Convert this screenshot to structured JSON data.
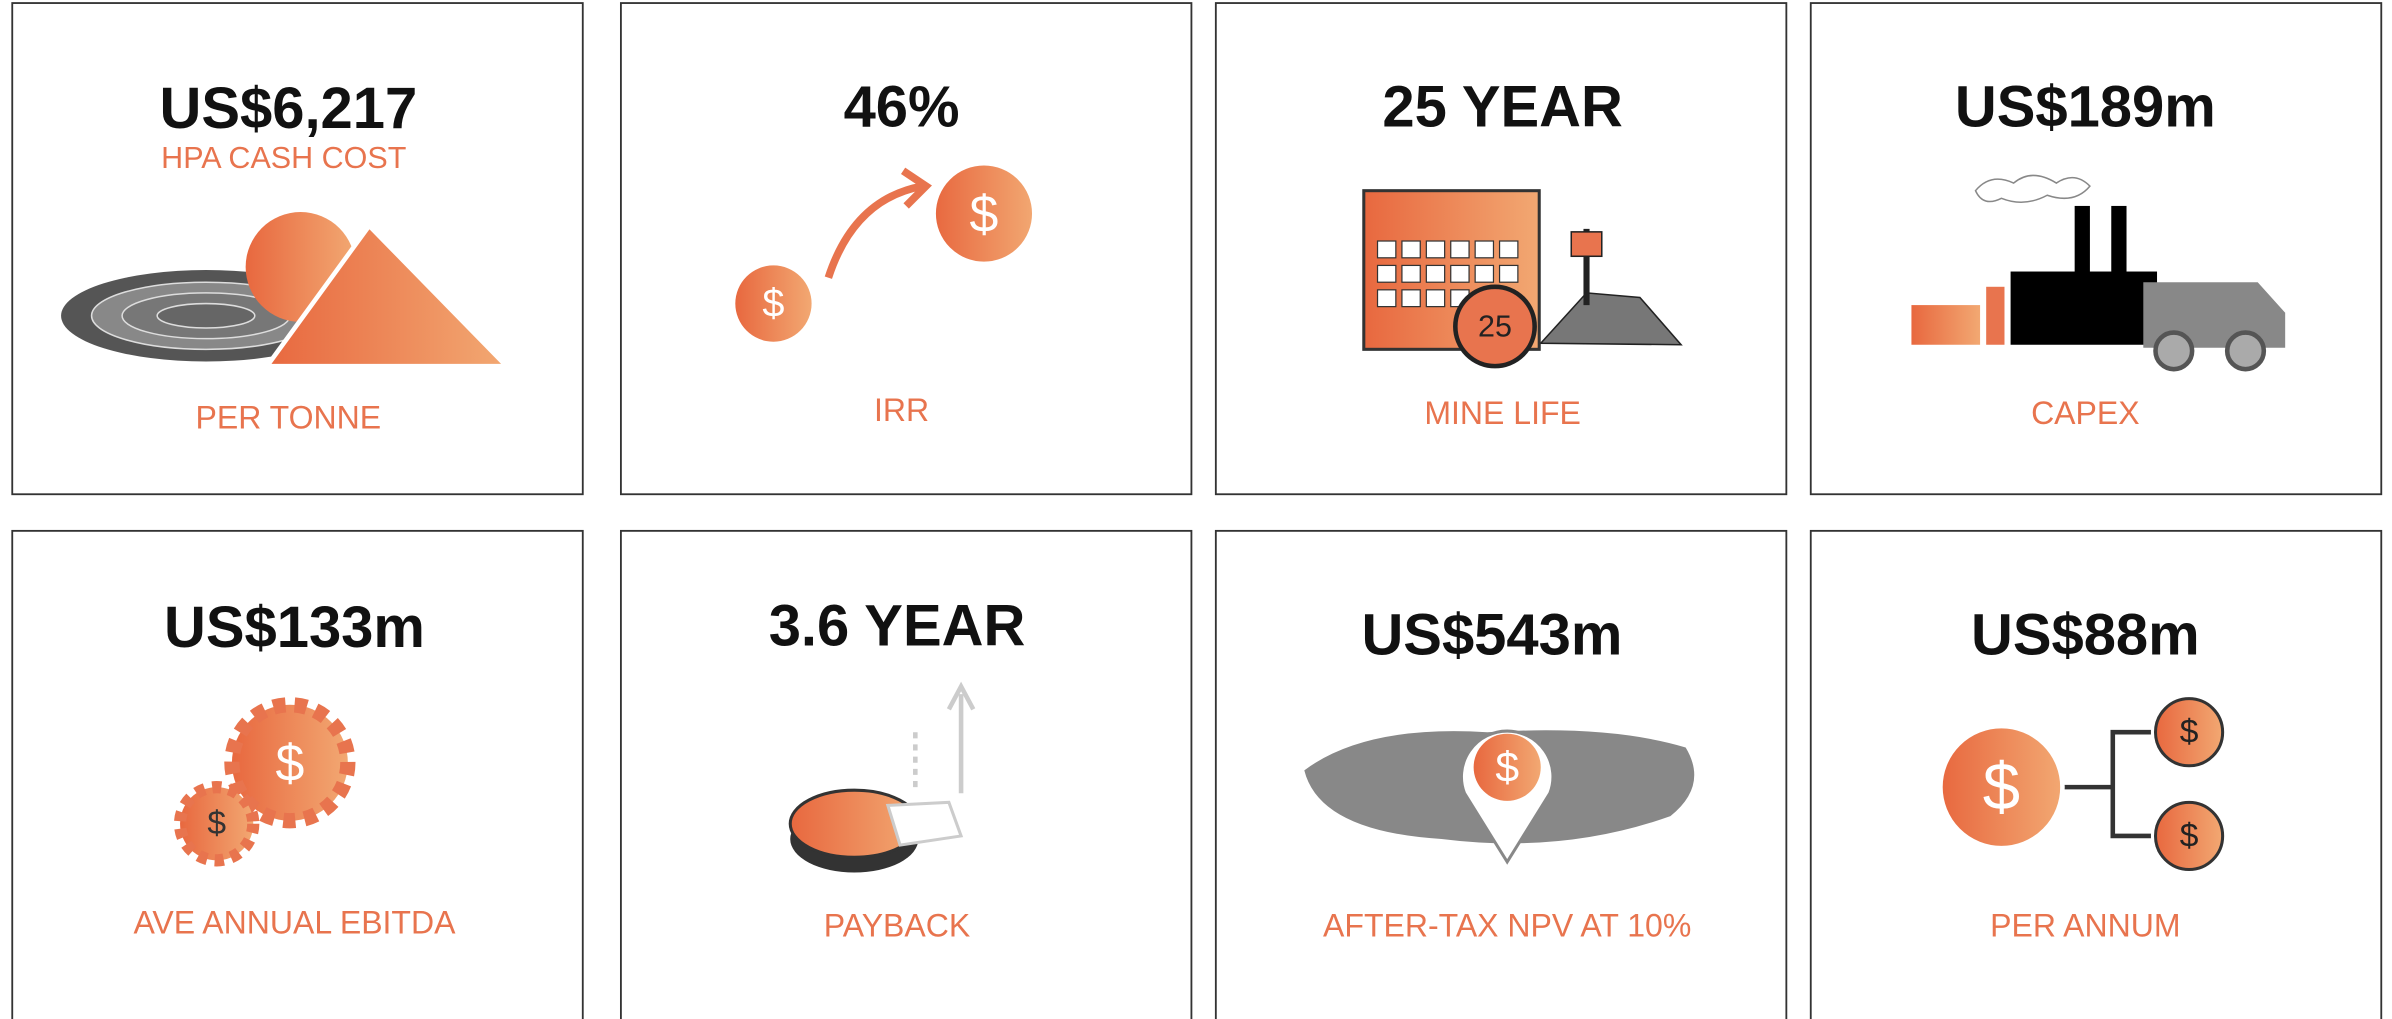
{
  "cards": [
    {
      "value": "US$6,217",
      "subtitle": "HPA CASH COST",
      "label": "PER TONNE"
    },
    {
      "value": "46%",
      "label": "IRR",
      "icon_labels": [
        "$",
        "$"
      ]
    },
    {
      "value": "25 YEAR",
      "label": "MINE LIFE",
      "icon_labels": [
        "25"
      ]
    },
    {
      "value": "US$189m",
      "label": "CAPEX"
    },
    {
      "value": "US$133m",
      "label": "AVE ANNUAL EBITDA",
      "icon_labels": [
        "$",
        "$"
      ]
    },
    {
      "value": "3.6 YEAR",
      "label": "PAYBACK"
    },
    {
      "value": "US$543m",
      "label": "AFTER-TAX NPV AT 10%",
      "icon_labels": [
        "$"
      ]
    },
    {
      "value": "US$88m",
      "label": "PER ANNUM",
      "icon_labels": [
        "$",
        "$",
        "$"
      ]
    }
  ]
}
